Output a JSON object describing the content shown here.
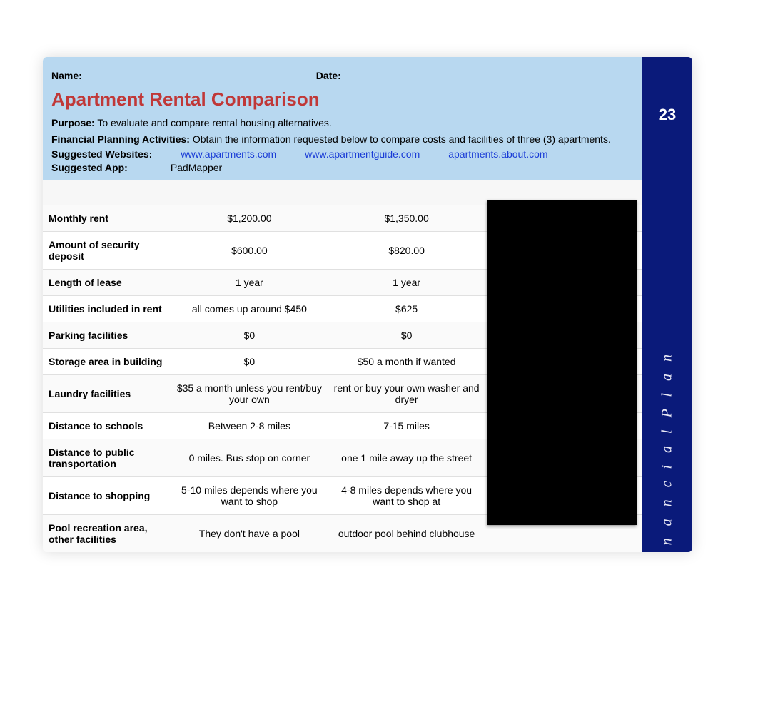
{
  "sidebar": {
    "number": "23",
    "vertical_label": "n a n c i a l   P l a n"
  },
  "header": {
    "name_label": "Name:",
    "date_label": "Date:",
    "title": "Apartment Rental Comparison",
    "purpose_label": "Purpose:",
    "purpose_text": "To evaluate and compare rental housing alternatives.",
    "fpa_label": "Financial Planning Activities:",
    "fpa_text": "Obtain the information requested below to compare costs and facilities of three (3) apartments.",
    "websites_label": "Suggested Websites:",
    "websites": [
      "www.apartments.com",
      "www.apartmentguide.com",
      "apartments.about.com"
    ],
    "app_label": "Suggested App:",
    "app_value": "PadMapper"
  },
  "colors": {
    "header_bg": "#b8d8f0",
    "title_color": "#c03838",
    "sidebar_bg": "#0a1a7a",
    "link_color": "#1a3cd6"
  },
  "table": {
    "rows": [
      {
        "label": "Monthly rent",
        "a": "$1,200.00",
        "b": "$1,350.00",
        "c": ""
      },
      {
        "label": "Amount of security deposit",
        "a": "$600.00",
        "b": "$820.00",
        "c": ""
      },
      {
        "label": "Length of lease",
        "a": "1 year",
        "b": "1 year",
        "c": ""
      },
      {
        "label": "Utilities included in rent",
        "a": "all comes up around $450",
        "b": "$625",
        "c": ""
      },
      {
        "label": "Parking facilities",
        "a": "$0",
        "b": "$0",
        "c": ""
      },
      {
        "label": "Storage area in building",
        "a": "$0",
        "b": "$50 a month if wanted",
        "c": ""
      },
      {
        "label": "Laundry facilities",
        "a": "$35 a month unless you rent/buy your own",
        "b": "rent or buy your own washer and dryer",
        "c": ""
      },
      {
        "label": "Distance to schools",
        "a": "Between 2-8 miles",
        "b": "7-15 miles",
        "c": ""
      },
      {
        "label": "Distance to public transportation",
        "a": "0 miles. Bus stop on corner",
        "b": "one 1 mile away up the street",
        "c": ""
      },
      {
        "label": "Distance to shopping",
        "a": "5-10 miles depends where you want to shop",
        "b": "4-8 miles depends where you want to shop at",
        "c": ""
      },
      {
        "label": "Pool recreation area, other facilities",
        "a": "They don't have a pool",
        "b": "outdoor pool behind clubhouse",
        "c": ""
      }
    ]
  }
}
